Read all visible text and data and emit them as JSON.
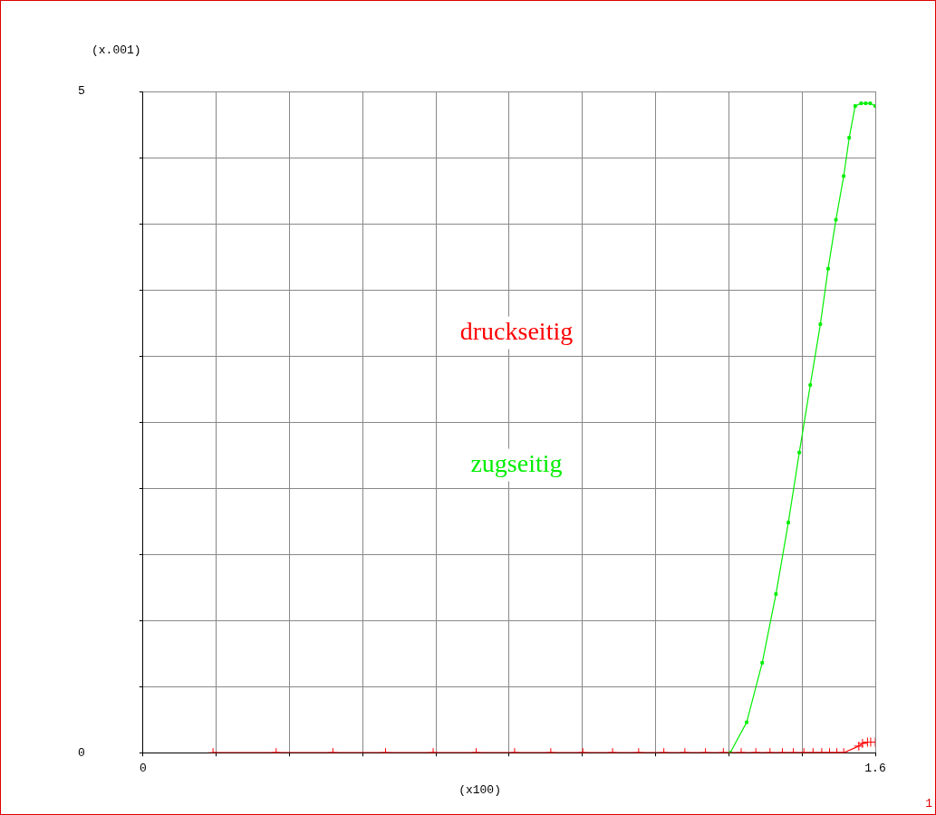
{
  "chart_data": {
    "type": "line",
    "xlabel": "(x100)",
    "ylabel": "(x.001)",
    "xlim": [
      0,
      1.6
    ],
    "ylim": [
      0,
      5
    ],
    "xticks": [
      0,
      {
        "value": 0.16,
        "label": null
      },
      {
        "value": 0.32,
        "label": null
      },
      {
        "value": 0.48,
        "label": null
      },
      {
        "value": 0.64,
        "label": null
      },
      {
        "value": 0.8,
        "label": null
      },
      {
        "value": 0.96,
        "label": null
      },
      {
        "value": 1.12,
        "label": null
      },
      {
        "value": 1.28,
        "label": null
      },
      {
        "value": 1.44,
        "label": null
      },
      1.6
    ],
    "yticks": [
      0,
      {
        "value": 0.5,
        "label": null
      },
      {
        "value": 1,
        "label": null
      },
      {
        "value": 1.5,
        "label": null
      },
      {
        "value": 2,
        "label": null
      },
      {
        "value": 2.5,
        "label": null
      },
      {
        "value": 3,
        "label": null
      },
      {
        "value": 3.5,
        "label": null
      },
      {
        "value": 4,
        "label": null
      },
      {
        "value": 4.5,
        "label": null
      },
      5
    ],
    "grid": true,
    "line_style": "solid",
    "annotations": [
      "1"
    ],
    "series": [
      {
        "name": "druckseitig",
        "color": "#ff0000",
        "marker": "cross",
        "x": [
          0.153,
          0.291,
          0.415,
          0.53,
          0.634,
          0.728,
          0.812,
          0.891,
          0.961,
          1.026,
          1.083,
          1.138,
          1.184,
          1.229,
          1.268,
          1.307,
          1.339,
          1.37,
          1.397,
          1.421,
          1.444,
          1.464,
          1.483,
          1.5,
          1.516,
          1.531,
          1.564,
          1.572,
          1.583,
          1.59,
          1.6
        ],
        "values": [
          0,
          0,
          0,
          0,
          0,
          0,
          0,
          0,
          0,
          0,
          0,
          0,
          0,
          0,
          0,
          0,
          0,
          0,
          0,
          0,
          0,
          0,
          0,
          0,
          0,
          0,
          0.05,
          0.07,
          0.08,
          0.08,
          0.08
        ]
      },
      {
        "name": "zugseitig",
        "color": "#00ee00",
        "marker": "square",
        "x": [
          1.283,
          1.319,
          1.353,
          1.383,
          1.41,
          1.434,
          1.458,
          1.48,
          1.497,
          1.514,
          1.531,
          1.543,
          1.556,
          1.569,
          1.579,
          1.589,
          1.6
        ],
        "values": [
          0,
          0.23,
          0.68,
          1.2,
          1.74,
          2.27,
          2.78,
          3.24,
          3.66,
          4.03,
          4.36,
          4.65,
          4.89,
          4.91,
          4.91,
          4.91,
          4.89
        ]
      }
    ]
  }
}
